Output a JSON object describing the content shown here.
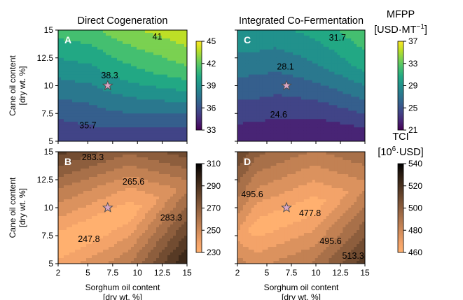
{
  "chart_data": [
    {
      "id": "A",
      "type": "contour",
      "panel_label": "A",
      "title": "Direct Cogeneration",
      "xlabel": "",
      "ylabel": "Cane oil content\n[dry wt. %]",
      "xlim": [
        2,
        15
      ],
      "ylim": [
        5,
        15
      ],
      "xticks": [],
      "yticks": [
        "5",
        "7.5",
        "10",
        "12.5",
        "15"
      ],
      "metric": "MFPP",
      "colorbar": {
        "ticks": [
          "33",
          "36",
          "39",
          "42",
          "45"
        ],
        "range": [
          33,
          45
        ]
      },
      "contour_labels": [
        {
          "text": "41",
          "x": 12.0,
          "y": 14.4
        },
        {
          "text": "38.3",
          "x": 7.2,
          "y": 10.9
        },
        {
          "text": "35.7",
          "x": 5.0,
          "y": 6.4
        }
      ],
      "star": {
        "x": 7,
        "y": 10
      }
    },
    {
      "id": "C",
      "type": "contour",
      "panel_label": "C",
      "title": "Integrated Co-Fermentation",
      "xlabel": "",
      "ylabel": "",
      "xlim": [
        2,
        15
      ],
      "ylim": [
        5,
        15
      ],
      "xticks": [],
      "yticks": [],
      "metric": "MFPP",
      "colorbar": {
        "title": "MFPP",
        "unit_text": "[USD·MT",
        "unit_sup": "−1",
        "unit_close": "]",
        "ticks": [
          "21",
          "25",
          "29",
          "33",
          "37"
        ],
        "range": [
          21,
          37
        ]
      },
      "contour_labels": [
        {
          "text": "31.7",
          "x": 12.2,
          "y": 14.3
        },
        {
          "text": "28.1",
          "x": 6.9,
          "y": 11.7
        },
        {
          "text": "24.6",
          "x": 6.2,
          "y": 7.4
        }
      ],
      "star": {
        "x": 7,
        "y": 10
      }
    },
    {
      "id": "B",
      "type": "contour",
      "panel_label": "B",
      "title": "",
      "xlabel": "Sorghum oil content\n[dry wt. %]",
      "ylabel": "Cane oil content\n[dry wt. %]",
      "xlim": [
        2,
        15
      ],
      "ylim": [
        5,
        15
      ],
      "xticks": [
        "2",
        "5",
        "7.5",
        "10",
        "12.5",
        "15"
      ],
      "yticks": [
        "5",
        "7.5",
        "10",
        "12.5",
        "15"
      ],
      "metric": "TCI",
      "colorbar": {
        "ticks": [
          "230",
          "250",
          "270",
          "290",
          "310"
        ],
        "range": [
          230,
          310
        ]
      },
      "contour_labels": [
        {
          "text": "283.3",
          "x": 5.5,
          "y": 14.5
        },
        {
          "text": "265.6",
          "x": 9.6,
          "y": 12.3
        },
        {
          "text": "283.3",
          "x": 13.4,
          "y": 9.1
        },
        {
          "text": "247.8",
          "x": 5.1,
          "y": 7.2
        }
      ],
      "star": {
        "x": 7,
        "y": 10
      }
    },
    {
      "id": "D",
      "type": "contour",
      "panel_label": "D",
      "title": "",
      "xlabel": "Sorghum oil content\n[dry wt. %]",
      "ylabel": "",
      "xlim": [
        2,
        15
      ],
      "ylim": [
        5,
        15
      ],
      "xticks": [
        "2",
        "5",
        "7.5",
        "10",
        "12.5",
        "15"
      ],
      "yticks": [],
      "metric": "TCI",
      "colorbar": {
        "title": "TCI",
        "unit_text": "[10",
        "unit_sup": "6",
        "unit_close": "·USD]",
        "ticks": [
          "460",
          "480",
          "500",
          "520",
          "540"
        ],
        "range": [
          460,
          540
        ]
      },
      "contour_labels": [
        {
          "text": "495.6",
          "x": 3.5,
          "y": 11.2
        },
        {
          "text": "477.8",
          "x": 9.4,
          "y": 9.5
        },
        {
          "text": "495.6",
          "x": 11.5,
          "y": 7.0
        },
        {
          "text": "513.3",
          "x": 13.8,
          "y": 5.7
        }
      ],
      "star": {
        "x": 7,
        "y": 10
      }
    }
  ],
  "colors": {
    "viridis": [
      "#440154",
      "#482475",
      "#414487",
      "#355f8d",
      "#2a788e",
      "#21918c",
      "#22a884",
      "#44bf70",
      "#7ad151",
      "#bddf26",
      "#fde725"
    ],
    "copper": [
      "#ffb06f",
      "#f3a369",
      "#db925e",
      "#c28153",
      "#a87049",
      "#8d5e3d",
      "#724c31",
      "#573a25",
      "#3c2819",
      "#22160e",
      "#000000"
    ],
    "star_fill": "#d9a6c4",
    "star_stroke": "#4d4d4d"
  }
}
